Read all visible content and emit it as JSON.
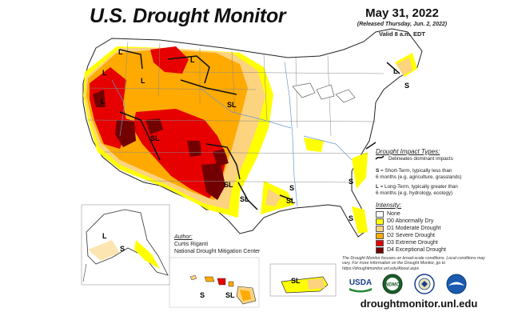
{
  "header": {
    "title": "U.S. Drought Monitor",
    "date": "May 31, 2022",
    "released": "(Released Thursday, Jun. 2, 2022)",
    "valid": "Valid 8 a.m. EDT"
  },
  "impact_types": {
    "title": "Drought Impact Types:",
    "delineates": "Delineates dominant impacts",
    "short_term_1": "= Short-Term, typically less than",
    "short_term_2": "6 months (e.g. agriculture, grasslands)",
    "long_term_1": "= Long-Term, typically greater than",
    "long_term_2": "6 months (e.g. hydrology, ecology)",
    "s_letter": "S",
    "l_letter": "L"
  },
  "intensity": {
    "title": "Intensity:",
    "levels": [
      {
        "label": "None",
        "color": "#ffffff"
      },
      {
        "label": "D0 Abnormally Dry",
        "color": "#ffff00"
      },
      {
        "label": "D1 Moderate Drought",
        "color": "#fcd37f"
      },
      {
        "label": "D2 Severe Drought",
        "color": "#ffaa00"
      },
      {
        "label": "D3 Extreme Drought",
        "color": "#e60000"
      },
      {
        "label": "D4 Exceptional Drought",
        "color": "#730000"
      }
    ]
  },
  "map_labels": {
    "sl_west": "SL",
    "sl_south": "SL",
    "sl_plains": "SL",
    "sl_texas": "SL",
    "sl_gulf": "SL",
    "sl_hi": "SL",
    "sl_pr": "SL",
    "l_nw": "L",
    "l_nw2": "L",
    "l_mt": "L",
    "l_mt2": "L",
    "l_ca": "L",
    "l_ne": "L",
    "l_ak": "L",
    "s_se": "S",
    "s_ne": "S",
    "s_hi": "S",
    "s_ak": "S",
    "s_fl": "S",
    "s_ms": "S"
  },
  "author": {
    "label": "Author:",
    "name": "Curtis Riganti",
    "org": "National Drought Mitigation Center"
  },
  "footnote": "The Drought Monitor focuses on broad-scale conditions. Local conditions may vary. For more information on the Drought Monitor, go to https://droughtmonitor.unl.edu/About.aspx",
  "logos": {
    "usda": "USDA",
    "ndmc": "NDMC"
  },
  "url": "droughtmonitor.unl.edu"
}
